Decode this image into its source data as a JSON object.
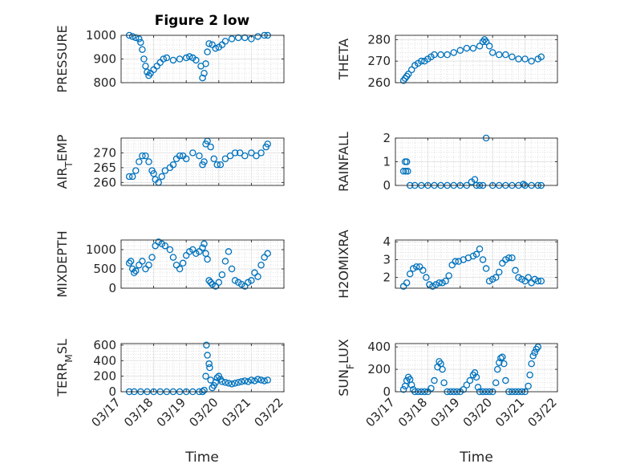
{
  "figure": {
    "title": "Figure 2 low",
    "xlabel": "Time",
    "marker_color": "#0072BD",
    "axes_color": "#262626",
    "grid": true,
    "minor_grid": true
  },
  "chart_data": [
    {
      "type": "scatter",
      "ylabel": "PRESSURE",
      "ylim": [
        800,
        1000
      ],
      "yticks": [
        "800",
        "900",
        "1000"
      ],
      "ytick_values": [
        800,
        900,
        1000
      ],
      "xlim": [
        "03/17",
        "03/22"
      ],
      "xticks": [
        "03/17",
        "03/18",
        "03/19",
        "03/20",
        "03/21",
        "03/22"
      ],
      "show_xticklabels": false,
      "x_day": [
        0.25,
        0.35,
        0.45,
        0.55,
        0.6,
        0.65,
        0.7,
        0.75,
        0.8,
        0.85,
        0.9,
        1.0,
        1.1,
        1.2,
        1.3,
        1.4,
        1.6,
        1.8,
        2.0,
        2.1,
        2.2,
        2.3,
        2.45,
        2.5,
        2.55,
        2.6,
        2.65,
        2.7,
        2.8,
        2.9,
        3.0,
        3.1,
        3.2,
        3.4,
        3.6,
        3.8,
        4.0,
        4.2,
        4.4,
        4.5
      ],
      "y": [
        1000,
        995,
        990,
        985,
        970,
        940,
        900,
        870,
        845,
        830,
        840,
        855,
        870,
        885,
        900,
        905,
        895,
        900,
        905,
        910,
        905,
        895,
        870,
        820,
        840,
        880,
        930,
        965,
        960,
        945,
        950,
        960,
        975,
        985,
        990,
        990,
        985,
        995,
        1000,
        1000
      ]
    },
    {
      "type": "scatter",
      "ylabel": "THETA",
      "ylim": [
        260,
        282
      ],
      "yticks": [
        "260",
        "270",
        "280"
      ],
      "ytick_values": [
        260,
        270,
        280
      ],
      "xlim": [
        "03/17",
        "03/22"
      ],
      "xticks": [
        "03/17",
        "03/18",
        "03/19",
        "03/20",
        "03/21",
        "03/22"
      ],
      "show_xticklabels": false,
      "x_day": [
        0.25,
        0.3,
        0.35,
        0.4,
        0.5,
        0.6,
        0.7,
        0.8,
        0.9,
        1.0,
        1.1,
        1.2,
        1.4,
        1.6,
        1.8,
        2.0,
        2.2,
        2.4,
        2.6,
        2.7,
        2.75,
        2.8,
        2.9,
        3.0,
        3.2,
        3.4,
        3.6,
        3.8,
        4.0,
        4.2,
        4.4,
        4.5
      ],
      "y": [
        261,
        262,
        263,
        264,
        266,
        268,
        269,
        270,
        270,
        271,
        272,
        273,
        273,
        273,
        274,
        275,
        276,
        276,
        277,
        279,
        280,
        279,
        277,
        274,
        273,
        273,
        272,
        271,
        271,
        270,
        271,
        272
      ]
    },
    {
      "type": "scatter",
      "ylabel": "AIR_TEMP",
      "ylim": [
        259,
        275
      ],
      "yticks": [
        "260",
        "265",
        "270"
      ],
      "ytick_values": [
        260,
        265,
        270
      ],
      "xlim": [
        "03/17",
        "03/22"
      ],
      "xticks": [
        "03/17",
        "03/18",
        "03/19",
        "03/20",
        "03/21",
        "03/22"
      ],
      "show_xticklabels": false,
      "x_day": [
        0.25,
        0.35,
        0.45,
        0.55,
        0.65,
        0.75,
        0.85,
        0.95,
        1.0,
        1.05,
        1.15,
        1.25,
        1.35,
        1.5,
        1.6,
        1.7,
        1.8,
        1.9,
        2.0,
        2.2,
        2.4,
        2.5,
        2.55,
        2.6,
        2.65,
        2.75,
        2.85,
        2.95,
        3.05,
        3.2,
        3.35,
        3.5,
        3.65,
        3.8,
        4.0,
        4.15,
        4.3,
        4.45,
        4.5
      ],
      "y": [
        262,
        262,
        264,
        267,
        269,
        269,
        267,
        264,
        263,
        261,
        260,
        262,
        264,
        265,
        266,
        268,
        269,
        269,
        268,
        270,
        269,
        266,
        267,
        273,
        274,
        272,
        268,
        266,
        266,
        268,
        269,
        270,
        270,
        269,
        270,
        269,
        270,
        272,
        273
      ]
    },
    {
      "type": "scatter",
      "ylabel": "RAINFALL",
      "ylim": [
        0,
        2
      ],
      "yticks": [
        "0",
        "1",
        "2"
      ],
      "ytick_values": [
        0,
        1,
        2
      ],
      "xlim": [
        "03/17",
        "03/22"
      ],
      "xticks": [
        "03/17",
        "03/18",
        "03/19",
        "03/20",
        "03/21",
        "03/22"
      ],
      "show_xticklabels": false,
      "x_day": [
        0.25,
        0.3,
        0.32,
        0.35,
        0.38,
        0.45,
        0.6,
        0.8,
        1.0,
        1.2,
        1.4,
        1.6,
        1.8,
        2.0,
        2.2,
        2.35,
        2.45,
        2.5,
        2.6,
        2.7,
        2.8,
        3.0,
        3.2,
        3.4,
        3.6,
        3.8,
        3.95,
        4.0,
        4.2,
        4.4,
        4.5
      ],
      "y": [
        0.6,
        1.0,
        0.6,
        1.0,
        0.6,
        0,
        0,
        0,
        0,
        0,
        0,
        0,
        0,
        0,
        0,
        0.15,
        0.25,
        0,
        0,
        0,
        2,
        0,
        0,
        0,
        0,
        0,
        0.05,
        0,
        0,
        0,
        0
      ]
    },
    {
      "type": "scatter",
      "ylabel": "MIXDEPTH",
      "ylim": [
        0,
        1250
      ],
      "yticks": [
        "0",
        "500",
        "1000"
      ],
      "ytick_values": [
        0,
        500,
        1000
      ],
      "xlim": [
        "03/17",
        "03/22"
      ],
      "xticks": [
        "03/17",
        "03/18",
        "03/19",
        "03/20",
        "03/21",
        "03/22"
      ],
      "show_xticklabels": false,
      "x_day": [
        0.25,
        0.3,
        0.35,
        0.4,
        0.45,
        0.55,
        0.65,
        0.75,
        0.85,
        0.95,
        1.05,
        1.15,
        1.25,
        1.35,
        1.5,
        1.6,
        1.7,
        1.8,
        1.9,
        2.0,
        2.1,
        2.2,
        2.3,
        2.4,
        2.5,
        2.55,
        2.6,
        2.65,
        2.7,
        2.75,
        2.8,
        2.9,
        3.0,
        3.1,
        3.2,
        3.3,
        3.4,
        3.5,
        3.6,
        3.7,
        3.8,
        3.9,
        4.0,
        4.1,
        4.2,
        4.3,
        4.4,
        4.5
      ],
      "y": [
        650,
        700,
        500,
        400,
        450,
        600,
        700,
        500,
        600,
        800,
        1100,
        1200,
        1150,
        1100,
        1000,
        800,
        600,
        500,
        650,
        850,
        950,
        1000,
        900,
        950,
        1050,
        1150,
        900,
        750,
        200,
        150,
        100,
        50,
        150,
        350,
        700,
        950,
        500,
        200,
        150,
        100,
        50,
        150,
        200,
        400,
        300,
        600,
        800,
        900
      ]
    },
    {
      "type": "scatter",
      "ylabel": "H2OMIXRA",
      "ylim": [
        1.4,
        4.1
      ],
      "yticks": [
        "2",
        "3",
        "4"
      ],
      "ytick_values": [
        2,
        3,
        4
      ],
      "xlim": [
        "03/17",
        "03/22"
      ],
      "xticks": [
        "03/17",
        "03/18",
        "03/19",
        "03/20",
        "03/21",
        "03/22"
      ],
      "show_xticklabels": false,
      "x_day": [
        0.25,
        0.35,
        0.45,
        0.55,
        0.65,
        0.75,
        0.85,
        0.95,
        1.05,
        1.15,
        1.25,
        1.35,
        1.45,
        1.55,
        1.65,
        1.75,
        1.85,
        1.95,
        2.1,
        2.25,
        2.4,
        2.5,
        2.6,
        2.7,
        2.8,
        2.9,
        3.0,
        3.1,
        3.2,
        3.3,
        3.4,
        3.5,
        3.6,
        3.7,
        3.8,
        3.9,
        4.0,
        4.1,
        4.2,
        4.3,
        4.4,
        4.5
      ],
      "y": [
        1.5,
        1.7,
        2.2,
        2.5,
        2.6,
        2.6,
        2.4,
        2.0,
        1.6,
        1.5,
        1.6,
        1.7,
        1.7,
        1.8,
        2.1,
        2.7,
        2.9,
        2.9,
        3.0,
        3.1,
        3.2,
        3.3,
        3.6,
        3.0,
        2.5,
        1.8,
        1.9,
        2.0,
        2.3,
        2.8,
        3.0,
        3.1,
        3.1,
        2.4,
        2.0,
        1.9,
        1.8,
        2.0,
        1.7,
        1.9,
        1.8,
        1.8
      ]
    },
    {
      "type": "scatter",
      "ylabel": "TERR_MSL",
      "ylim": [
        0,
        620
      ],
      "yticks": [
        "0",
        "200",
        "400",
        "600"
      ],
      "ytick_values": [
        0,
        200,
        400,
        600
      ],
      "xlim": [
        "03/17",
        "03/22"
      ],
      "xticks": [
        "03/17",
        "03/18",
        "03/19",
        "03/20",
        "03/21",
        "03/22"
      ],
      "show_xticklabels": true,
      "x_day": [
        0.25,
        0.4,
        0.6,
        0.8,
        1.0,
        1.2,
        1.4,
        1.6,
        1.8,
        2.0,
        2.2,
        2.4,
        2.5,
        2.55,
        2.6,
        2.62,
        2.65,
        2.7,
        2.72,
        2.75,
        2.8,
        2.85,
        2.9,
        2.95,
        3.0,
        3.05,
        3.1,
        3.2,
        3.3,
        3.4,
        3.5,
        3.6,
        3.7,
        3.8,
        3.9,
        4.0,
        4.1,
        4.2,
        4.3,
        4.4,
        4.5
      ],
      "y": [
        0,
        0,
        0,
        0,
        0,
        0,
        0,
        0,
        0,
        0,
        0,
        0,
        0,
        20,
        200,
        600,
        470,
        360,
        310,
        150,
        50,
        80,
        120,
        180,
        200,
        160,
        130,
        120,
        110,
        100,
        110,
        120,
        130,
        140,
        130,
        150,
        140,
        160,
        150,
        140,
        150
      ]
    },
    {
      "type": "scatter",
      "ylabel": "SUN_FLUX",
      "ylim": [
        0,
        430
      ],
      "yticks": [
        "0",
        "200",
        "400"
      ],
      "ytick_values": [
        0,
        200,
        400
      ],
      "xlim": [
        "03/17",
        "03/22"
      ],
      "xticks": [
        "03/17",
        "03/18",
        "03/19",
        "03/20",
        "03/21",
        "03/22"
      ],
      "show_xticklabels": true,
      "x_day": [
        0.25,
        0.3,
        0.35,
        0.4,
        0.45,
        0.5,
        0.55,
        0.6,
        0.7,
        0.8,
        0.9,
        1.0,
        1.1,
        1.2,
        1.3,
        1.35,
        1.4,
        1.45,
        1.5,
        1.6,
        1.7,
        1.8,
        1.9,
        2.0,
        2.1,
        2.2,
        2.3,
        2.4,
        2.45,
        2.5,
        2.55,
        2.6,
        2.7,
        2.8,
        2.9,
        3.0,
        3.1,
        3.15,
        3.2,
        3.25,
        3.3,
        3.35,
        3.4,
        3.5,
        3.6,
        3.7,
        3.8,
        3.9,
        4.0,
        4.1,
        4.15,
        4.2,
        4.25,
        4.3,
        4.35,
        4.4
      ],
      "y": [
        20,
        50,
        100,
        130,
        110,
        60,
        20,
        0,
        0,
        0,
        0,
        0,
        30,
        100,
        220,
        270,
        250,
        200,
        80,
        0,
        0,
        0,
        0,
        0,
        20,
        60,
        100,
        150,
        170,
        130,
        40,
        0,
        0,
        0,
        0,
        0,
        80,
        200,
        260,
        300,
        310,
        250,
        100,
        0,
        0,
        0,
        0,
        0,
        0,
        50,
        150,
        250,
        320,
        350,
        380,
        400
      ]
    }
  ]
}
